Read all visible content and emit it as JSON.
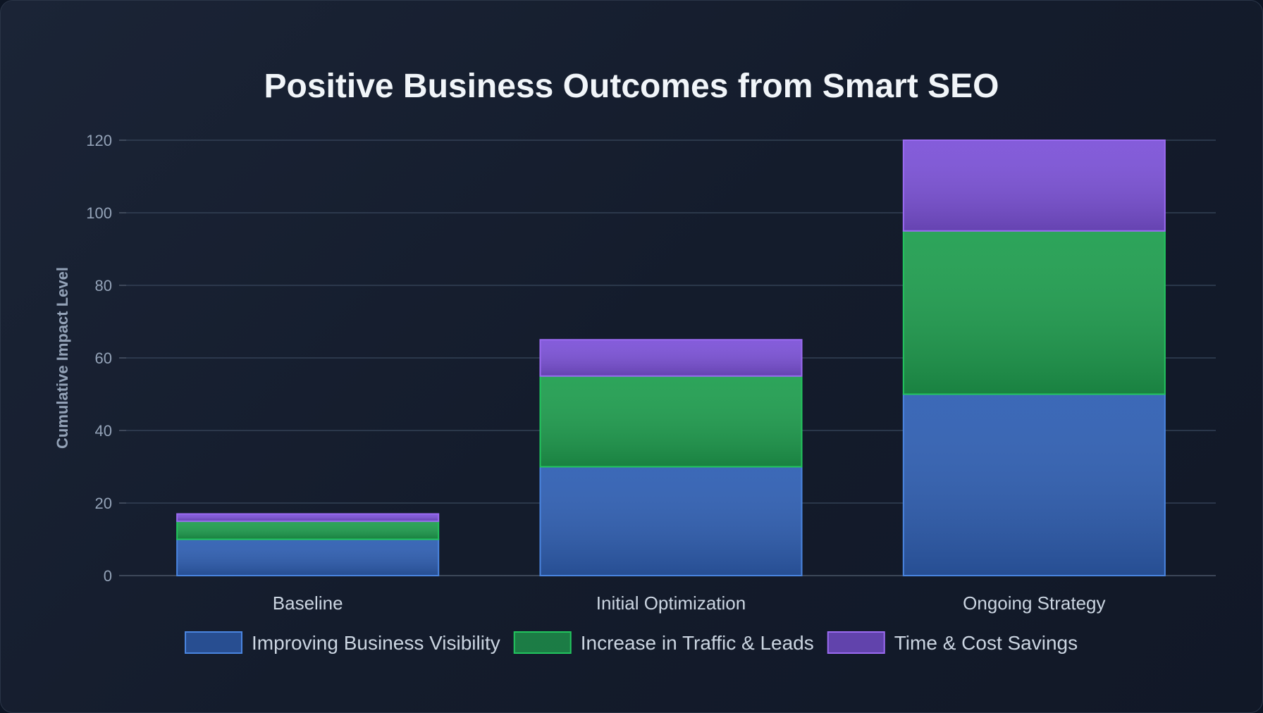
{
  "chart_data": {
    "type": "bar",
    "stacked": true,
    "title": "Positive Business Outcomes from Smart SEO",
    "ylabel": "Cumulative Impact Level",
    "xlabel": "",
    "ylim": [
      0,
      120
    ],
    "yticks": [
      0,
      20,
      40,
      60,
      80,
      100,
      120
    ],
    "grid": true,
    "legend": "bottom",
    "categories": [
      "Baseline",
      "Initial Optimization",
      "Ongoing Strategy"
    ],
    "series": [
      {
        "name": "Improving Business Visibility",
        "values": [
          10,
          30,
          50
        ],
        "color": "#2f5fb3",
        "border": "#4a85e0"
      },
      {
        "name": "Increase in Traffic & Leads",
        "values": [
          5,
          25,
          45
        ],
        "color": "#1f9e4f",
        "border": "#22c55e"
      },
      {
        "name": "Time & Cost Savings",
        "values": [
          2,
          10,
          25
        ],
        "color": "#7c52d8",
        "border": "#9b6bf2"
      }
    ]
  }
}
